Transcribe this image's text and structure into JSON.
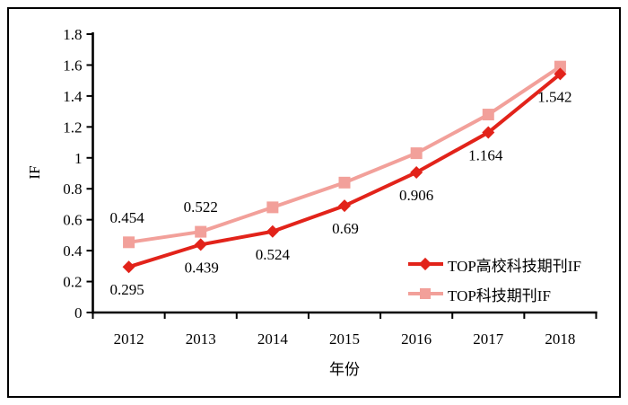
{
  "figure": {
    "background": "#ffffff",
    "border_color": "#000000"
  },
  "chart_data": {
    "type": "line",
    "title": "",
    "xlabel": "年份",
    "ylabel": "IF",
    "categories": [
      "2012",
      "2013",
      "2014",
      "2015",
      "2016",
      "2017",
      "2018"
    ],
    "series": [
      {
        "name": "TOP高校科技期刊IF",
        "color": "#e2231a",
        "marker": "diamond",
        "values": [
          0.295,
          0.439,
          0.524,
          0.69,
          0.906,
          1.164,
          1.542
        ],
        "point_labels": [
          "0.295",
          "0.439",
          "0.524",
          "0.69",
          "0.906",
          "1.164",
          "1.542"
        ],
        "labels_position": "below"
      },
      {
        "name": "TOP科技期刊IF",
        "color": "#f2a09a",
        "marker": "square",
        "values": [
          0.454,
          0.522,
          0.68,
          0.84,
          1.03,
          1.28,
          1.59
        ],
        "point_labels": [
          "0.454",
          "0.522",
          "",
          "",
          "",
          "",
          ""
        ],
        "labels_position": "above"
      }
    ],
    "ylim": [
      0,
      1.8
    ],
    "ytick_labels": [
      "0",
      "0.2",
      "0.4",
      "0.6",
      "0.8",
      "1",
      "1.2",
      "1.4",
      "1.6",
      "1.8"
    ],
    "grid": false,
    "legend_position": "inside bottom-right"
  }
}
